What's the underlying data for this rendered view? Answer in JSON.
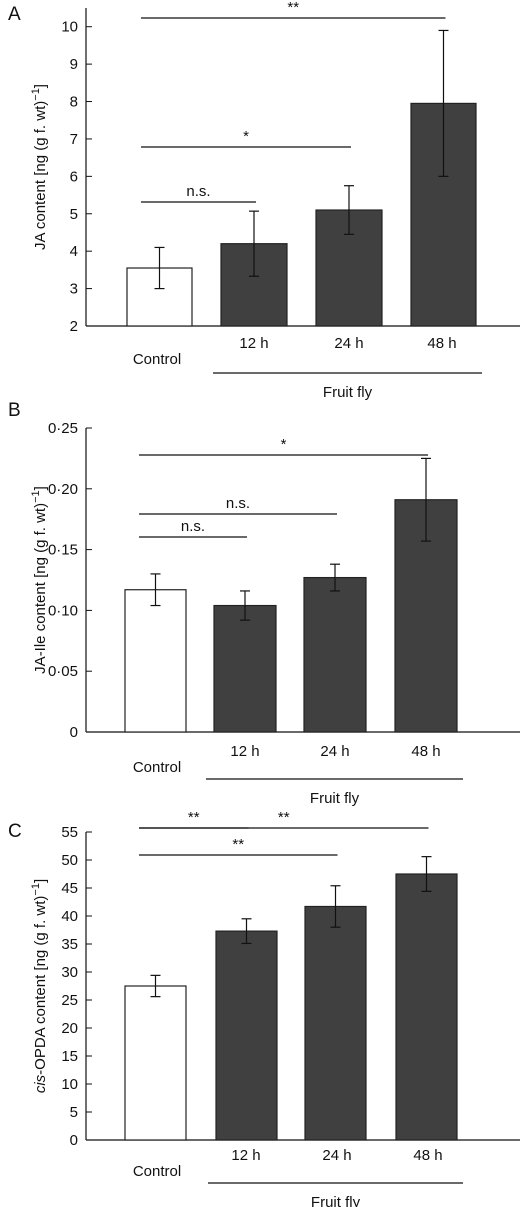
{
  "chart_data": [
    {
      "type": "bar",
      "panel_label": "A",
      "categories": [
        "Control",
        "12 h",
        "24 h",
        "48 h"
      ],
      "group_label": "Fruit fly",
      "values": [
        3.55,
        4.2,
        5.1,
        7.95
      ],
      "errors": [
        0.55,
        0.87,
        0.65,
        1.95
      ],
      "bar_colors": [
        "#ffffff",
        "#404040",
        "#404040",
        "#404040"
      ],
      "ylabel_prefix": "JA content [ng (g f. wt)",
      "ylabel_sup": "−1",
      "ylabel_suffix": "]",
      "ylim": [
        2,
        10.5
      ],
      "yticks": [
        2,
        3,
        4,
        5,
        6,
        7,
        8,
        9,
        10
      ],
      "ytick_labels": [
        "2",
        "3",
        "4",
        "5",
        "6",
        "7",
        "8",
        "9",
        "10"
      ],
      "significance": [
        {
          "from": 0,
          "to": 1,
          "label": "n.s."
        },
        {
          "from": 0,
          "to": 2,
          "label": "*"
        },
        {
          "from": 0,
          "to": 3,
          "label": "**"
        }
      ]
    },
    {
      "type": "bar",
      "panel_label": "B",
      "categories": [
        "Control",
        "12 h",
        "24 h",
        "48 h"
      ],
      "group_label": "Fruit fly",
      "values": [
        0.117,
        0.104,
        0.127,
        0.191
      ],
      "errors": [
        0.013,
        0.012,
        0.011,
        0.034
      ],
      "bar_colors": [
        "#ffffff",
        "#404040",
        "#404040",
        "#404040"
      ],
      "ylabel_prefix": "JA-Ile content [ng (g f. wt)",
      "ylabel_sup": "−1",
      "ylabel_suffix": "]",
      "ylim": [
        0,
        0.25
      ],
      "yticks": [
        0,
        0.05,
        0.1,
        0.15,
        0.2,
        0.25
      ],
      "ytick_labels": [
        "0",
        "0·05",
        "0·10",
        "0·15",
        "0·20",
        "0·25"
      ],
      "significance": [
        {
          "from": 0,
          "to": 1,
          "label": "n.s."
        },
        {
          "from": 0,
          "to": 2,
          "label": "n.s."
        },
        {
          "from": 0,
          "to": 3,
          "label": "*"
        }
      ]
    },
    {
      "type": "bar",
      "panel_label": "C",
      "categories": [
        "Control",
        "12 h",
        "24 h",
        "48 h"
      ],
      "group_label": "Fruit fly",
      "values": [
        27.5,
        37.3,
        41.7,
        47.5
      ],
      "errors": [
        1.9,
        2.2,
        3.7,
        3.1
      ],
      "bar_colors": [
        "#ffffff",
        "#404040",
        "#404040",
        "#404040"
      ],
      "ylabel_italic": "cis",
      "ylabel_prefix": "-OPDA content [ng (g f. wt)",
      "ylabel_sup": "−1",
      "ylabel_suffix": "]",
      "ylim": [
        0,
        55
      ],
      "yticks": [
        0,
        5,
        10,
        15,
        20,
        25,
        30,
        35,
        40,
        45,
        50,
        55
      ],
      "ytick_labels": [
        "0",
        "5",
        "10",
        "15",
        "20",
        "25",
        "30",
        "35",
        "40",
        "45",
        "50",
        "55"
      ],
      "significance": [
        {
          "from": 0,
          "to": 1,
          "label": "**"
        },
        {
          "from": 0,
          "to": 2,
          "label": "**"
        },
        {
          "from": 0,
          "to": 3,
          "label": "**"
        }
      ]
    }
  ]
}
